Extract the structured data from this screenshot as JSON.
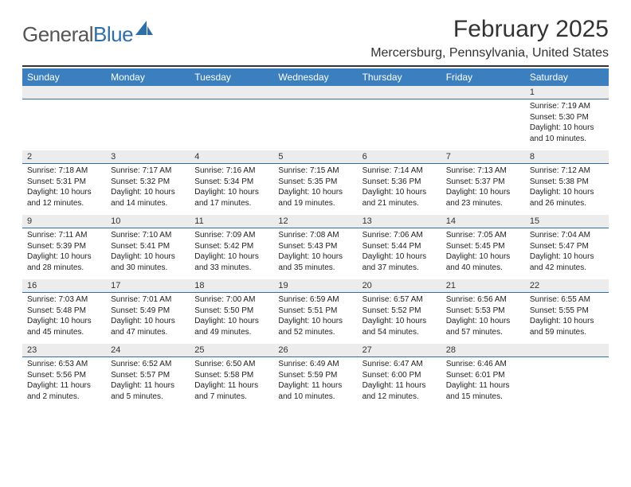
{
  "brand": {
    "text1": "General",
    "text2": "Blue"
  },
  "title": "February 2025",
  "location": "Mercersburg, Pennsylvania, United States",
  "colors": {
    "header_bg": "#3c7fbf",
    "header_text": "#ffffff",
    "daynum_bg": "#ececec",
    "rule": "#2f6fa8",
    "logo_blue": "#2f6fa8"
  },
  "day_names": [
    "Sunday",
    "Monday",
    "Tuesday",
    "Wednesday",
    "Thursday",
    "Friday",
    "Saturday"
  ],
  "weeks": [
    [
      null,
      null,
      null,
      null,
      null,
      null,
      {
        "n": "1",
        "sunrise": "7:19 AM",
        "sunset": "5:30 PM",
        "daylight": "10 hours and 10 minutes."
      }
    ],
    [
      {
        "n": "2",
        "sunrise": "7:18 AM",
        "sunset": "5:31 PM",
        "daylight": "10 hours and 12 minutes."
      },
      {
        "n": "3",
        "sunrise": "7:17 AM",
        "sunset": "5:32 PM",
        "daylight": "10 hours and 14 minutes."
      },
      {
        "n": "4",
        "sunrise": "7:16 AM",
        "sunset": "5:34 PM",
        "daylight": "10 hours and 17 minutes."
      },
      {
        "n": "5",
        "sunrise": "7:15 AM",
        "sunset": "5:35 PM",
        "daylight": "10 hours and 19 minutes."
      },
      {
        "n": "6",
        "sunrise": "7:14 AM",
        "sunset": "5:36 PM",
        "daylight": "10 hours and 21 minutes."
      },
      {
        "n": "7",
        "sunrise": "7:13 AM",
        "sunset": "5:37 PM",
        "daylight": "10 hours and 23 minutes."
      },
      {
        "n": "8",
        "sunrise": "7:12 AM",
        "sunset": "5:38 PM",
        "daylight": "10 hours and 26 minutes."
      }
    ],
    [
      {
        "n": "9",
        "sunrise": "7:11 AM",
        "sunset": "5:39 PM",
        "daylight": "10 hours and 28 minutes."
      },
      {
        "n": "10",
        "sunrise": "7:10 AM",
        "sunset": "5:41 PM",
        "daylight": "10 hours and 30 minutes."
      },
      {
        "n": "11",
        "sunrise": "7:09 AM",
        "sunset": "5:42 PM",
        "daylight": "10 hours and 33 minutes."
      },
      {
        "n": "12",
        "sunrise": "7:08 AM",
        "sunset": "5:43 PM",
        "daylight": "10 hours and 35 minutes."
      },
      {
        "n": "13",
        "sunrise": "7:06 AM",
        "sunset": "5:44 PM",
        "daylight": "10 hours and 37 minutes."
      },
      {
        "n": "14",
        "sunrise": "7:05 AM",
        "sunset": "5:45 PM",
        "daylight": "10 hours and 40 minutes."
      },
      {
        "n": "15",
        "sunrise": "7:04 AM",
        "sunset": "5:47 PM",
        "daylight": "10 hours and 42 minutes."
      }
    ],
    [
      {
        "n": "16",
        "sunrise": "7:03 AM",
        "sunset": "5:48 PM",
        "daylight": "10 hours and 45 minutes."
      },
      {
        "n": "17",
        "sunrise": "7:01 AM",
        "sunset": "5:49 PM",
        "daylight": "10 hours and 47 minutes."
      },
      {
        "n": "18",
        "sunrise": "7:00 AM",
        "sunset": "5:50 PM",
        "daylight": "10 hours and 49 minutes."
      },
      {
        "n": "19",
        "sunrise": "6:59 AM",
        "sunset": "5:51 PM",
        "daylight": "10 hours and 52 minutes."
      },
      {
        "n": "20",
        "sunrise": "6:57 AM",
        "sunset": "5:52 PM",
        "daylight": "10 hours and 54 minutes."
      },
      {
        "n": "21",
        "sunrise": "6:56 AM",
        "sunset": "5:53 PM",
        "daylight": "10 hours and 57 minutes."
      },
      {
        "n": "22",
        "sunrise": "6:55 AM",
        "sunset": "5:55 PM",
        "daylight": "10 hours and 59 minutes."
      }
    ],
    [
      {
        "n": "23",
        "sunrise": "6:53 AM",
        "sunset": "5:56 PM",
        "daylight": "11 hours and 2 minutes."
      },
      {
        "n": "24",
        "sunrise": "6:52 AM",
        "sunset": "5:57 PM",
        "daylight": "11 hours and 5 minutes."
      },
      {
        "n": "25",
        "sunrise": "6:50 AM",
        "sunset": "5:58 PM",
        "daylight": "11 hours and 7 minutes."
      },
      {
        "n": "26",
        "sunrise": "6:49 AM",
        "sunset": "5:59 PM",
        "daylight": "11 hours and 10 minutes."
      },
      {
        "n": "27",
        "sunrise": "6:47 AM",
        "sunset": "6:00 PM",
        "daylight": "11 hours and 12 minutes."
      },
      {
        "n": "28",
        "sunrise": "6:46 AM",
        "sunset": "6:01 PM",
        "daylight": "11 hours and 15 minutes."
      },
      null
    ]
  ],
  "labels": {
    "sunrise": "Sunrise:",
    "sunset": "Sunset:",
    "daylight": "Daylight:"
  }
}
